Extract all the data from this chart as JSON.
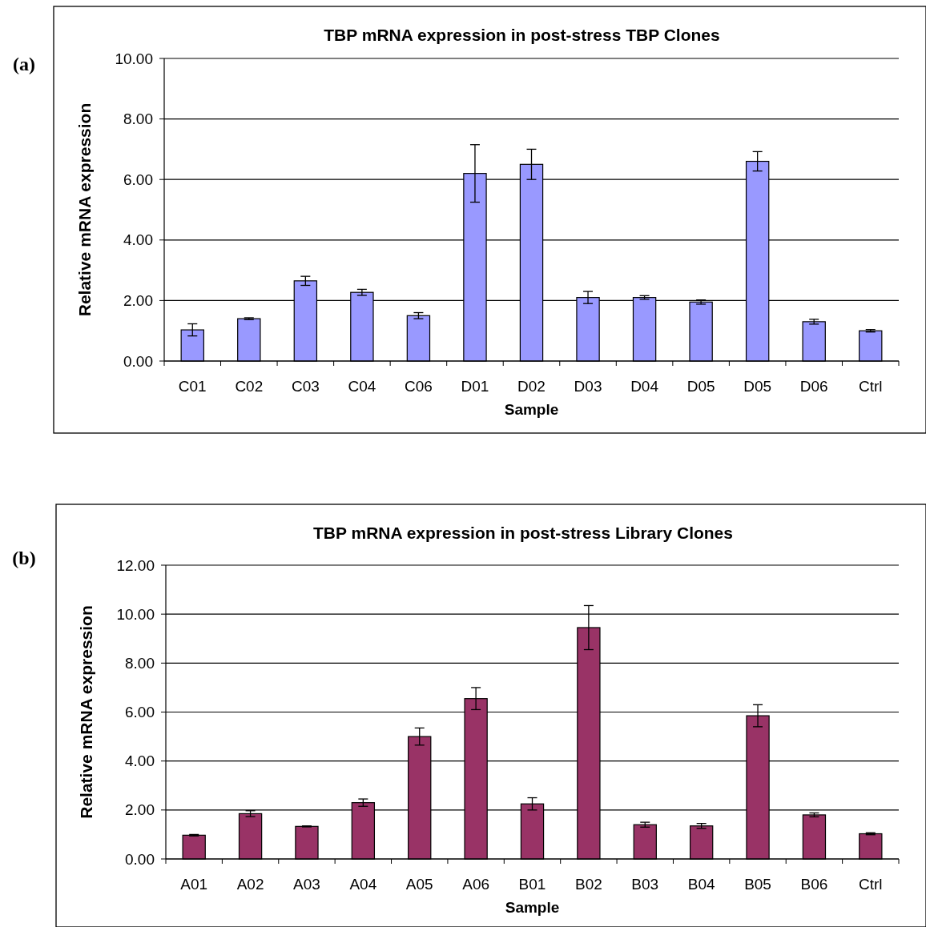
{
  "chart_data": [
    {
      "type": "bar",
      "title": "TBP mRNA expression in post-stress TBP Clones",
      "xlabel": "Sample",
      "ylabel": "Relative mRNA expression",
      "annotations": [
        "(a)"
      ],
      "categories": [
        "C01",
        "C02",
        "C03",
        "C04",
        "C06",
        "D01",
        "D02",
        "D03",
        "D04",
        "D05",
        "D05",
        "D06",
        "Ctrl"
      ],
      "values": [
        1.03,
        1.4,
        2.65,
        2.27,
        1.5,
        6.2,
        6.5,
        2.1,
        2.1,
        1.95,
        6.6,
        1.3,
        1.0
      ],
      "errors": [
        0.2,
        0.03,
        0.15,
        0.1,
        0.1,
        0.95,
        0.5,
        0.2,
        0.06,
        0.07,
        0.32,
        0.08,
        0.04
      ],
      "color": "#9999ff",
      "ylim": [
        0,
        10
      ],
      "yticks": [
        {
          "value": 0,
          "label": "0.00"
        },
        {
          "value": 2,
          "label": "2.00"
        },
        {
          "value": 4,
          "label": "4.00"
        },
        {
          "value": 6,
          "label": "6.00"
        },
        {
          "value": 8,
          "label": "8.00"
        },
        {
          "value": 10,
          "label": "10.00"
        }
      ],
      "grid": "y"
    },
    {
      "type": "bar",
      "title": "TBP mRNA expression in post-stress Library Clones",
      "xlabel": "Sample",
      "ylabel": "Relative mRNA expression",
      "annotations": [
        "(b)"
      ],
      "categories": [
        "A01",
        "A02",
        "A03",
        "A04",
        "A05",
        "A06",
        "B01",
        "B02",
        "B03",
        "B04",
        "B05",
        "B06",
        "Ctrl"
      ],
      "values": [
        0.97,
        1.85,
        1.33,
        2.3,
        5.0,
        6.55,
        2.25,
        9.45,
        1.4,
        1.35,
        5.85,
        1.8,
        1.03
      ],
      "errors": [
        0.03,
        0.12,
        0.02,
        0.15,
        0.35,
        0.45,
        0.25,
        0.9,
        0.1,
        0.1,
        0.45,
        0.08,
        0.04
      ],
      "color": "#993366",
      "ylim": [
        0,
        12
      ],
      "yticks": [
        {
          "value": 0,
          "label": "0.00"
        },
        {
          "value": 2,
          "label": "2.00"
        },
        {
          "value": 4,
          "label": "4.00"
        },
        {
          "value": 6,
          "label": "6.00"
        },
        {
          "value": 8,
          "label": "8.00"
        },
        {
          "value": 10,
          "label": "10.00"
        },
        {
          "value": 12,
          "label": "12.00"
        }
      ],
      "grid": "y"
    }
  ]
}
